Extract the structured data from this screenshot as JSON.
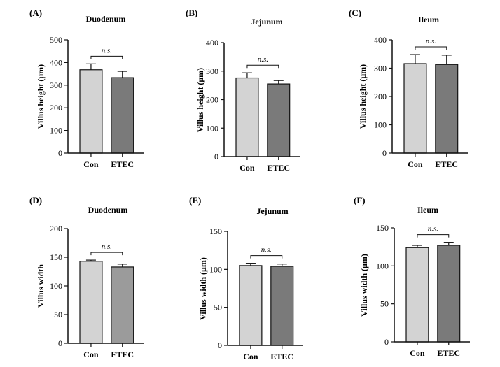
{
  "figure": {
    "panels": [
      {
        "label": "(A)",
        "title": "Duodenum",
        "ylabel": "Villus height (μm)"
      },
      {
        "label": "(B)",
        "title": "Jejunum",
        "ylabel": "Villus height (μm)"
      },
      {
        "label": "(C)",
        "title": "Ileum",
        "ylabel": "Villus height (μm)"
      },
      {
        "label": "(D)",
        "title": "Duodenum",
        "ylabel": "Villus width"
      },
      {
        "label": "(E)",
        "title": "Jejunum",
        "ylabel": "Villus width (μm)"
      },
      {
        "label": "(F)",
        "title": "Ileum",
        "ylabel": "Villus width (μm)"
      }
    ]
  },
  "colors": {
    "con": "#d3d3d3",
    "etec": "#7a7a7a",
    "etec_alt": "#9b9b9b",
    "axis": "#111111"
  },
  "chart_data": [
    {
      "type": "bar",
      "title": "Duodenum",
      "ylabel": "Villus height (μm)",
      "categories": [
        "Con",
        "ETEC"
      ],
      "values": [
        368,
        333
      ],
      "errors": [
        26,
        28
      ],
      "ylim": [
        0,
        500
      ],
      "yticks": [
        0,
        100,
        200,
        300,
        400,
        500
      ],
      "annotation": "n.s.",
      "bar_colors": [
        "#d3d3d3",
        "#7a7a7a"
      ]
    },
    {
      "type": "bar",
      "title": "Jejunum",
      "ylabel": "Villus height (μm)",
      "categories": [
        "Con",
        "ETEC"
      ],
      "values": [
        276,
        255
      ],
      "errors": [
        18,
        12
      ],
      "ylim": [
        0,
        400
      ],
      "yticks": [
        0,
        100,
        200,
        300,
        400
      ],
      "annotation": "n.s.",
      "bar_colors": [
        "#d3d3d3",
        "#7a7a7a"
      ]
    },
    {
      "type": "bar",
      "title": "Ileum",
      "ylabel": "Villus height (μm)",
      "categories": [
        "Con",
        "ETEC"
      ],
      "values": [
        316,
        313
      ],
      "errors": [
        32,
        33
      ],
      "ylim": [
        0,
        400
      ],
      "yticks": [
        0,
        100,
        200,
        300,
        400
      ],
      "annotation": "n.s.",
      "bar_colors": [
        "#d3d3d3",
        "#7a7a7a"
      ]
    },
    {
      "type": "bar",
      "title": "Duodenum",
      "ylabel": "Villus width",
      "categories": [
        "Con",
        "ETEC"
      ],
      "values": [
        143,
        133
      ],
      "errors": [
        2,
        5
      ],
      "ylim": [
        0,
        200
      ],
      "yticks": [
        0,
        50,
        100,
        150,
        200
      ],
      "annotation": "n.s.",
      "bar_colors": [
        "#d3d3d3",
        "#9b9b9b"
      ]
    },
    {
      "type": "bar",
      "title": "Jejunum",
      "ylabel": "Villus width (μm)",
      "categories": [
        "Con",
        "ETEC"
      ],
      "values": [
        105,
        104
      ],
      "errors": [
        3,
        3
      ],
      "ylim": [
        0,
        150
      ],
      "yticks": [
        0,
        50,
        100,
        150
      ],
      "annotation": "n.s.",
      "bar_colors": [
        "#d3d3d3",
        "#7a7a7a"
      ]
    },
    {
      "type": "bar",
      "title": "Ileum",
      "ylabel": "Villus width (μm)",
      "categories": [
        "Con",
        "ETEC"
      ],
      "values": [
        124,
        127
      ],
      "errors": [
        3,
        4
      ],
      "ylim": [
        0,
        150
      ],
      "yticks": [
        0,
        50,
        100,
        150
      ],
      "annotation": "n.s.",
      "bar_colors": [
        "#d3d3d3",
        "#7a7a7a"
      ]
    }
  ]
}
